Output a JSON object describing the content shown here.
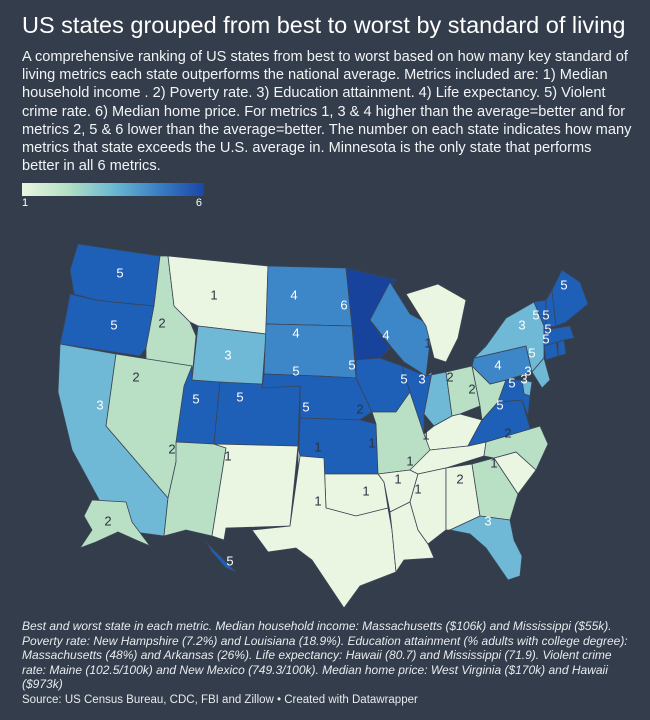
{
  "title": "US states grouped from best to worst by standard of living",
  "description": "A comprehensive ranking of US states from best to worst based on how many key standard of living metrics each state outperforms the national average. Metrics included are: 1) Median household income . 2) Poverty rate. 3) Education attainment. 4) Life expectancy. 5) Violent crime rate. 6) Median home price. For metrics 1, 3 & 4 higher than the average=better and for metrics 2, 5 & 6 lower than the average=better. The number on each state indicates how many metrics that state exceeds the U.S. average in. Minnesota is the only state that performs better in all 6 metrics.",
  "legend": {
    "min": "1",
    "max": "6"
  },
  "colors": {
    "1": "#eaf6e1",
    "2": "#b9e0c4",
    "3": "#6fb8d6",
    "4": "#3d86c8",
    "5": "#1e5fb8",
    "6": "#17439c"
  },
  "states": [
    {
      "name": "Washington",
      "value": 5
    },
    {
      "name": "Oregon",
      "value": 5
    },
    {
      "name": "California",
      "value": 3
    },
    {
      "name": "Idaho",
      "value": 2
    },
    {
      "name": "Nevada",
      "value": 2
    },
    {
      "name": "Montana",
      "value": 1
    },
    {
      "name": "Wyoming",
      "value": 3
    },
    {
      "name": "Utah",
      "value": 5
    },
    {
      "name": "Arizona",
      "value": 2
    },
    {
      "name": "Colorado",
      "value": 5
    },
    {
      "name": "New Mexico",
      "value": 1
    },
    {
      "name": "North Dakota",
      "value": 4
    },
    {
      "name": "South Dakota",
      "value": 4
    },
    {
      "name": "Nebraska",
      "value": 5
    },
    {
      "name": "Kansas",
      "value": 5
    },
    {
      "name": "Oklahoma",
      "value": 1
    },
    {
      "name": "Texas",
      "value": 1
    },
    {
      "name": "Minnesota",
      "value": 6
    },
    {
      "name": "Iowa",
      "value": 5
    },
    {
      "name": "Missouri",
      "value": 2
    },
    {
      "name": "Arkansas",
      "value": 1
    },
    {
      "name": "Louisiana",
      "value": 1
    },
    {
      "name": "Wisconsin",
      "value": 4
    },
    {
      "name": "Illinois",
      "value": 5
    },
    {
      "name": "Michigan",
      "value": 1
    },
    {
      "name": "Indiana",
      "value": 3
    },
    {
      "name": "Ohio",
      "value": 2
    },
    {
      "name": "Kentucky",
      "value": 1
    },
    {
      "name": "Tennessee",
      "value": 1
    },
    {
      "name": "Mississippi",
      "value": 1
    },
    {
      "name": "Alabama",
      "value": 1
    },
    {
      "name": "Georgia",
      "value": 2
    },
    {
      "name": "Florida",
      "value": 3
    },
    {
      "name": "South Carolina",
      "value": 1
    },
    {
      "name": "North Carolina",
      "value": 2
    },
    {
      "name": "Virginia",
      "value": 5
    },
    {
      "name": "West Virginia",
      "value": 2
    },
    {
      "name": "Pennsylvania",
      "value": 4
    },
    {
      "name": "New York",
      "value": 3
    },
    {
      "name": "New Jersey",
      "value": 3
    },
    {
      "name": "Delaware",
      "value": 3
    },
    {
      "name": "Maryland",
      "value": 5
    },
    {
      "name": "Connecticut",
      "value": 5
    },
    {
      "name": "Rhode Island",
      "value": 5
    },
    {
      "name": "Massachusetts",
      "value": 5
    },
    {
      "name": "Vermont",
      "value": 5
    },
    {
      "name": "New Hampshire",
      "value": 5
    },
    {
      "name": "Maine",
      "value": 5
    },
    {
      "name": "Alaska",
      "value": 2
    },
    {
      "name": "Hawaii",
      "value": 5
    }
  ],
  "notes": "Best and worst state in each metric. Median household income: Massachusetts ($106k) and Mississippi ($55k). Poverty rate: New Hampshire (7.2%) and Louisiana (18.9%). Education attainment (% adults with college degree): Massachusetts (48%) and Arkansas (26%). Life expectancy: Hawaii (80.7) and Mississippi (71.9). Violent crime rate: Maine (102.5/100k) and New Mexico (749.3/100k). Median home price: West Virginia ($170k) and Hawaii ($973k)",
  "source": "Source: US Census Bureau, CDC, FBI and Zillow • Created with Datawrapper"
}
